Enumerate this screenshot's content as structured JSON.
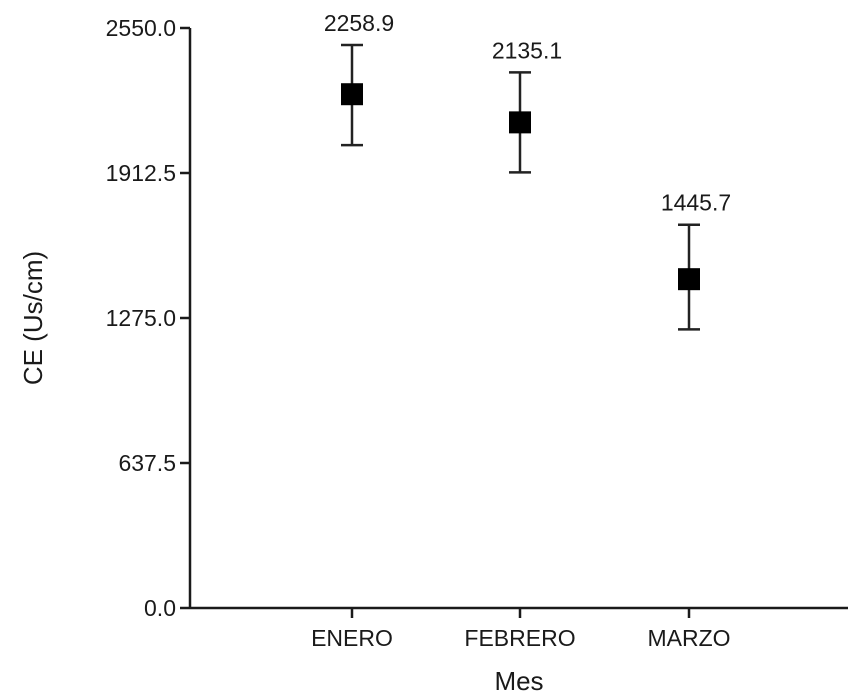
{
  "chart_data": {
    "type": "scatter",
    "title": "",
    "xlabel": "Mes",
    "ylabel": "CE (Us/cm)",
    "categories": [
      "ENERO",
      "FEBRERO",
      "MARZO"
    ],
    "values": [
      2258.9,
      2135.1,
      1445.7
    ],
    "value_labels": [
      "2258.9",
      "2135.1",
      "1445.7"
    ],
    "error_bars": [
      {
        "low": 2035,
        "high": 2475
      },
      {
        "low": 1915,
        "high": 2355
      },
      {
        "low": 1225,
        "high": 1685
      }
    ],
    "ylim": [
      0,
      2550
    ],
    "y_ticks": [
      "0.0",
      "637.5",
      "1275.0",
      "1912.5",
      "2550.0"
    ],
    "grid": false,
    "marker": "square",
    "colors": {
      "marker": "#000000",
      "axis": "#1a1a1a"
    }
  }
}
